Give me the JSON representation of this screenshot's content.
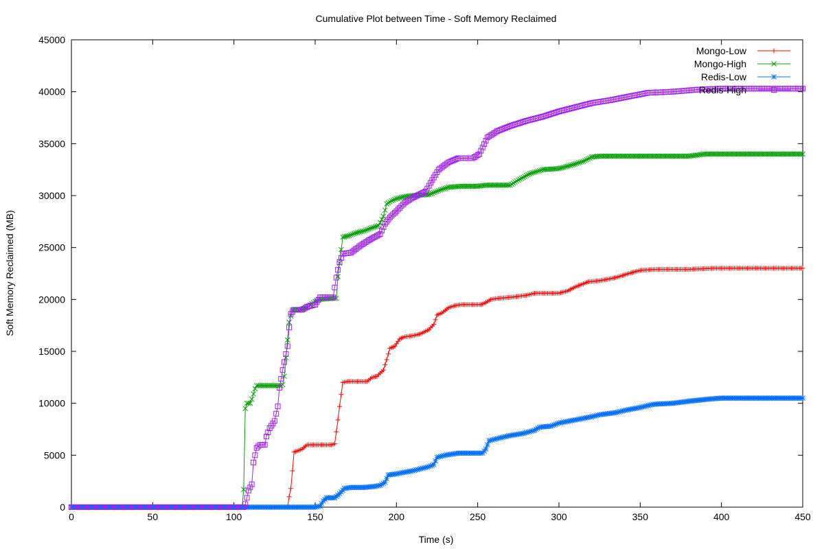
{
  "chart_data": {
    "type": "line",
    "title": "Cumulative Plot between Time - Soft Memory Reclaimed",
    "xlabel": "Time (s)",
    "ylabel": "Soft Memory Reclaimed (MB)",
    "xlim": [
      0,
      450
    ],
    "ylim": [
      0,
      45000
    ],
    "xticks": [
      0,
      50,
      100,
      150,
      200,
      250,
      300,
      350,
      400,
      450
    ],
    "yticks": [
      0,
      5000,
      10000,
      15000,
      20000,
      25000,
      30000,
      35000,
      40000,
      45000
    ],
    "grid": false,
    "legend_position": "top-right",
    "series": [
      {
        "name": "Mongo-Low",
        "color": "#ff0000",
        "marker": "plus",
        "points": [
          [
            0,
            0
          ],
          [
            133,
            0
          ],
          [
            134,
            1000
          ],
          [
            135,
            1800
          ],
          [
            136,
            3500
          ],
          [
            137,
            5300
          ],
          [
            139,
            5400
          ],
          [
            142,
            5600
          ],
          [
            145,
            6000
          ],
          [
            160,
            6000
          ],
          [
            162,
            6100
          ],
          [
            164,
            8400
          ],
          [
            165,
            9700
          ],
          [
            167,
            12000
          ],
          [
            170,
            12100
          ],
          [
            182,
            12100
          ],
          [
            185,
            12500
          ],
          [
            188,
            12600
          ],
          [
            192,
            13200
          ],
          [
            194,
            14200
          ],
          [
            196,
            15300
          ],
          [
            199,
            15500
          ],
          [
            202,
            16200
          ],
          [
            205,
            16400
          ],
          [
            210,
            16500
          ],
          [
            215,
            16700
          ],
          [
            220,
            17100
          ],
          [
            223,
            17600
          ],
          [
            225,
            18500
          ],
          [
            228,
            18700
          ],
          [
            232,
            19200
          ],
          [
            236,
            19400
          ],
          [
            240,
            19500
          ],
          [
            252,
            19500
          ],
          [
            255,
            19700
          ],
          [
            258,
            20000
          ],
          [
            262,
            20100
          ],
          [
            270,
            20200
          ],
          [
            280,
            20400
          ],
          [
            285,
            20600
          ],
          [
            300,
            20600
          ],
          [
            305,
            20800
          ],
          [
            310,
            21200
          ],
          [
            318,
            21700
          ],
          [
            325,
            21800
          ],
          [
            335,
            22100
          ],
          [
            343,
            22500
          ],
          [
            350,
            22800
          ],
          [
            360,
            22900
          ],
          [
            380,
            22900
          ],
          [
            395,
            23000
          ],
          [
            450,
            23000
          ]
        ]
      },
      {
        "name": "Mongo-High",
        "color": "#00a000",
        "marker": "cross",
        "points": [
          [
            0,
            0
          ],
          [
            105,
            0
          ],
          [
            106,
            1700
          ],
          [
            107,
            9500
          ],
          [
            108,
            10000
          ],
          [
            110,
            10000
          ],
          [
            111,
            10400
          ],
          [
            113,
            11400
          ],
          [
            114,
            11700
          ],
          [
            120,
            11700
          ],
          [
            129,
            11700
          ],
          [
            130,
            11800
          ],
          [
            131,
            12600
          ],
          [
            132,
            14400
          ],
          [
            134,
            17800
          ],
          [
            136,
            19000
          ],
          [
            140,
            19000
          ],
          [
            145,
            19200
          ],
          [
            148,
            19600
          ],
          [
            152,
            20000
          ],
          [
            160,
            20100
          ],
          [
            163,
            20100
          ],
          [
            164,
            22200
          ],
          [
            166,
            24800
          ],
          [
            167,
            26000
          ],
          [
            170,
            26100
          ],
          [
            175,
            26400
          ],
          [
            180,
            26600
          ],
          [
            185,
            26900
          ],
          [
            189,
            27100
          ],
          [
            192,
            28000
          ],
          [
            194,
            29200
          ],
          [
            197,
            29500
          ],
          [
            200,
            29700
          ],
          [
            205,
            29900
          ],
          [
            210,
            30000
          ],
          [
            220,
            30100
          ],
          [
            228,
            30600
          ],
          [
            232,
            30800
          ],
          [
            240,
            30900
          ],
          [
            250,
            30900
          ],
          [
            255,
            31000
          ],
          [
            270,
            31000
          ],
          [
            275,
            31500
          ],
          [
            282,
            32100
          ],
          [
            290,
            32500
          ],
          [
            300,
            32600
          ],
          [
            307,
            32900
          ],
          [
            315,
            33300
          ],
          [
            320,
            33700
          ],
          [
            325,
            33800
          ],
          [
            370,
            33800
          ],
          [
            380,
            33800
          ],
          [
            385,
            33900
          ],
          [
            390,
            34000
          ],
          [
            450,
            34000
          ]
        ]
      },
      {
        "name": "Redis-Low",
        "color": "#0070ff",
        "marker": "star",
        "points": [
          [
            0,
            0
          ],
          [
            150,
            0
          ],
          [
            153,
            100
          ],
          [
            155,
            600
          ],
          [
            157,
            900
          ],
          [
            162,
            900
          ],
          [
            165,
            1300
          ],
          [
            168,
            1800
          ],
          [
            172,
            1900
          ],
          [
            180,
            1900
          ],
          [
            187,
            2000
          ],
          [
            190,
            2100
          ],
          [
            193,
            2400
          ],
          [
            195,
            3100
          ],
          [
            200,
            3200
          ],
          [
            203,
            3300
          ],
          [
            210,
            3500
          ],
          [
            215,
            3700
          ],
          [
            220,
            3900
          ],
          [
            223,
            4100
          ],
          [
            225,
            4800
          ],
          [
            230,
            5000
          ],
          [
            238,
            5200
          ],
          [
            248,
            5200
          ],
          [
            253,
            5200
          ],
          [
            255,
            5600
          ],
          [
            257,
            6400
          ],
          [
            262,
            6600
          ],
          [
            270,
            6900
          ],
          [
            278,
            7100
          ],
          [
            285,
            7400
          ],
          [
            288,
            7700
          ],
          [
            295,
            7800
          ],
          [
            300,
            8100
          ],
          [
            310,
            8400
          ],
          [
            320,
            8700
          ],
          [
            325,
            8900
          ],
          [
            335,
            9100
          ],
          [
            340,
            9300
          ],
          [
            350,
            9600
          ],
          [
            358,
            9900
          ],
          [
            370,
            10000
          ],
          [
            380,
            10200
          ],
          [
            392,
            10400
          ],
          [
            400,
            10500
          ],
          [
            450,
            10500
          ]
        ]
      },
      {
        "name": "Redis-High",
        "color": "#a020f0",
        "marker": "square",
        "points": [
          [
            0,
            0
          ],
          [
            106,
            0
          ],
          [
            107,
            300
          ],
          [
            108,
            900
          ],
          [
            109,
            1600
          ],
          [
            111,
            2200
          ],
          [
            112,
            4300
          ],
          [
            114,
            5700
          ],
          [
            116,
            6000
          ],
          [
            119,
            6000
          ],
          [
            120,
            6800
          ],
          [
            122,
            7600
          ],
          [
            125,
            8300
          ],
          [
            127,
            9700
          ],
          [
            128,
            11500
          ],
          [
            130,
            13200
          ],
          [
            133,
            15500
          ],
          [
            134,
            17300
          ],
          [
            135,
            18600
          ],
          [
            137,
            19000
          ],
          [
            142,
            19000
          ],
          [
            145,
            19300
          ],
          [
            150,
            19500
          ],
          [
            153,
            20200
          ],
          [
            161,
            20200
          ],
          [
            163,
            22100
          ],
          [
            165,
            23600
          ],
          [
            167,
            24400
          ],
          [
            172,
            24500
          ],
          [
            178,
            25200
          ],
          [
            183,
            25700
          ],
          [
            190,
            26300
          ],
          [
            193,
            27300
          ],
          [
            196,
            27900
          ],
          [
            200,
            28500
          ],
          [
            205,
            29300
          ],
          [
            210,
            29800
          ],
          [
            218,
            30400
          ],
          [
            222,
            31500
          ],
          [
            226,
            32500
          ],
          [
            232,
            33200
          ],
          [
            238,
            33600
          ],
          [
            247,
            33600
          ],
          [
            251,
            34000
          ],
          [
            256,
            35600
          ],
          [
            262,
            36200
          ],
          [
            270,
            36700
          ],
          [
            280,
            37200
          ],
          [
            290,
            37600
          ],
          [
            300,
            38100
          ],
          [
            310,
            38500
          ],
          [
            320,
            38900
          ],
          [
            332,
            39200
          ],
          [
            345,
            39600
          ],
          [
            355,
            39900
          ],
          [
            370,
            40000
          ],
          [
            385,
            40200
          ],
          [
            400,
            40300
          ],
          [
            450,
            40300
          ]
        ]
      }
    ]
  }
}
